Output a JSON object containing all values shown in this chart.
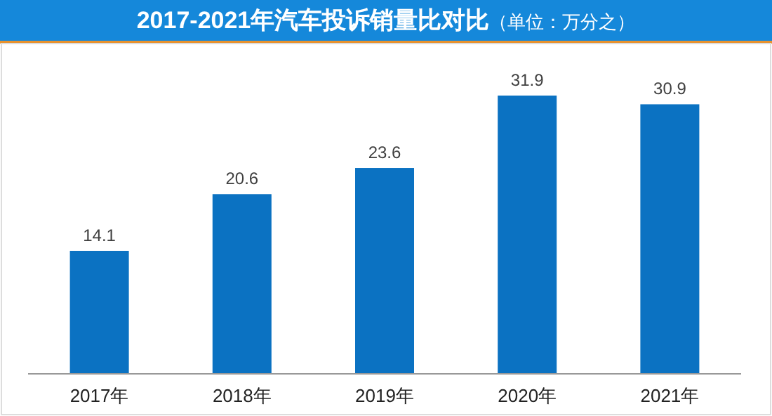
{
  "chart_data": {
    "type": "bar",
    "title": "2017-2021年汽车投诉销量比对比",
    "subtitle": "（单位：万分之）",
    "categories": [
      "2017年",
      "2018年",
      "2019年",
      "2020年",
      "2021年"
    ],
    "values": [
      14.1,
      20.6,
      23.6,
      31.9,
      30.9
    ],
    "color": "#0b72c2",
    "data_labels": true
  }
}
